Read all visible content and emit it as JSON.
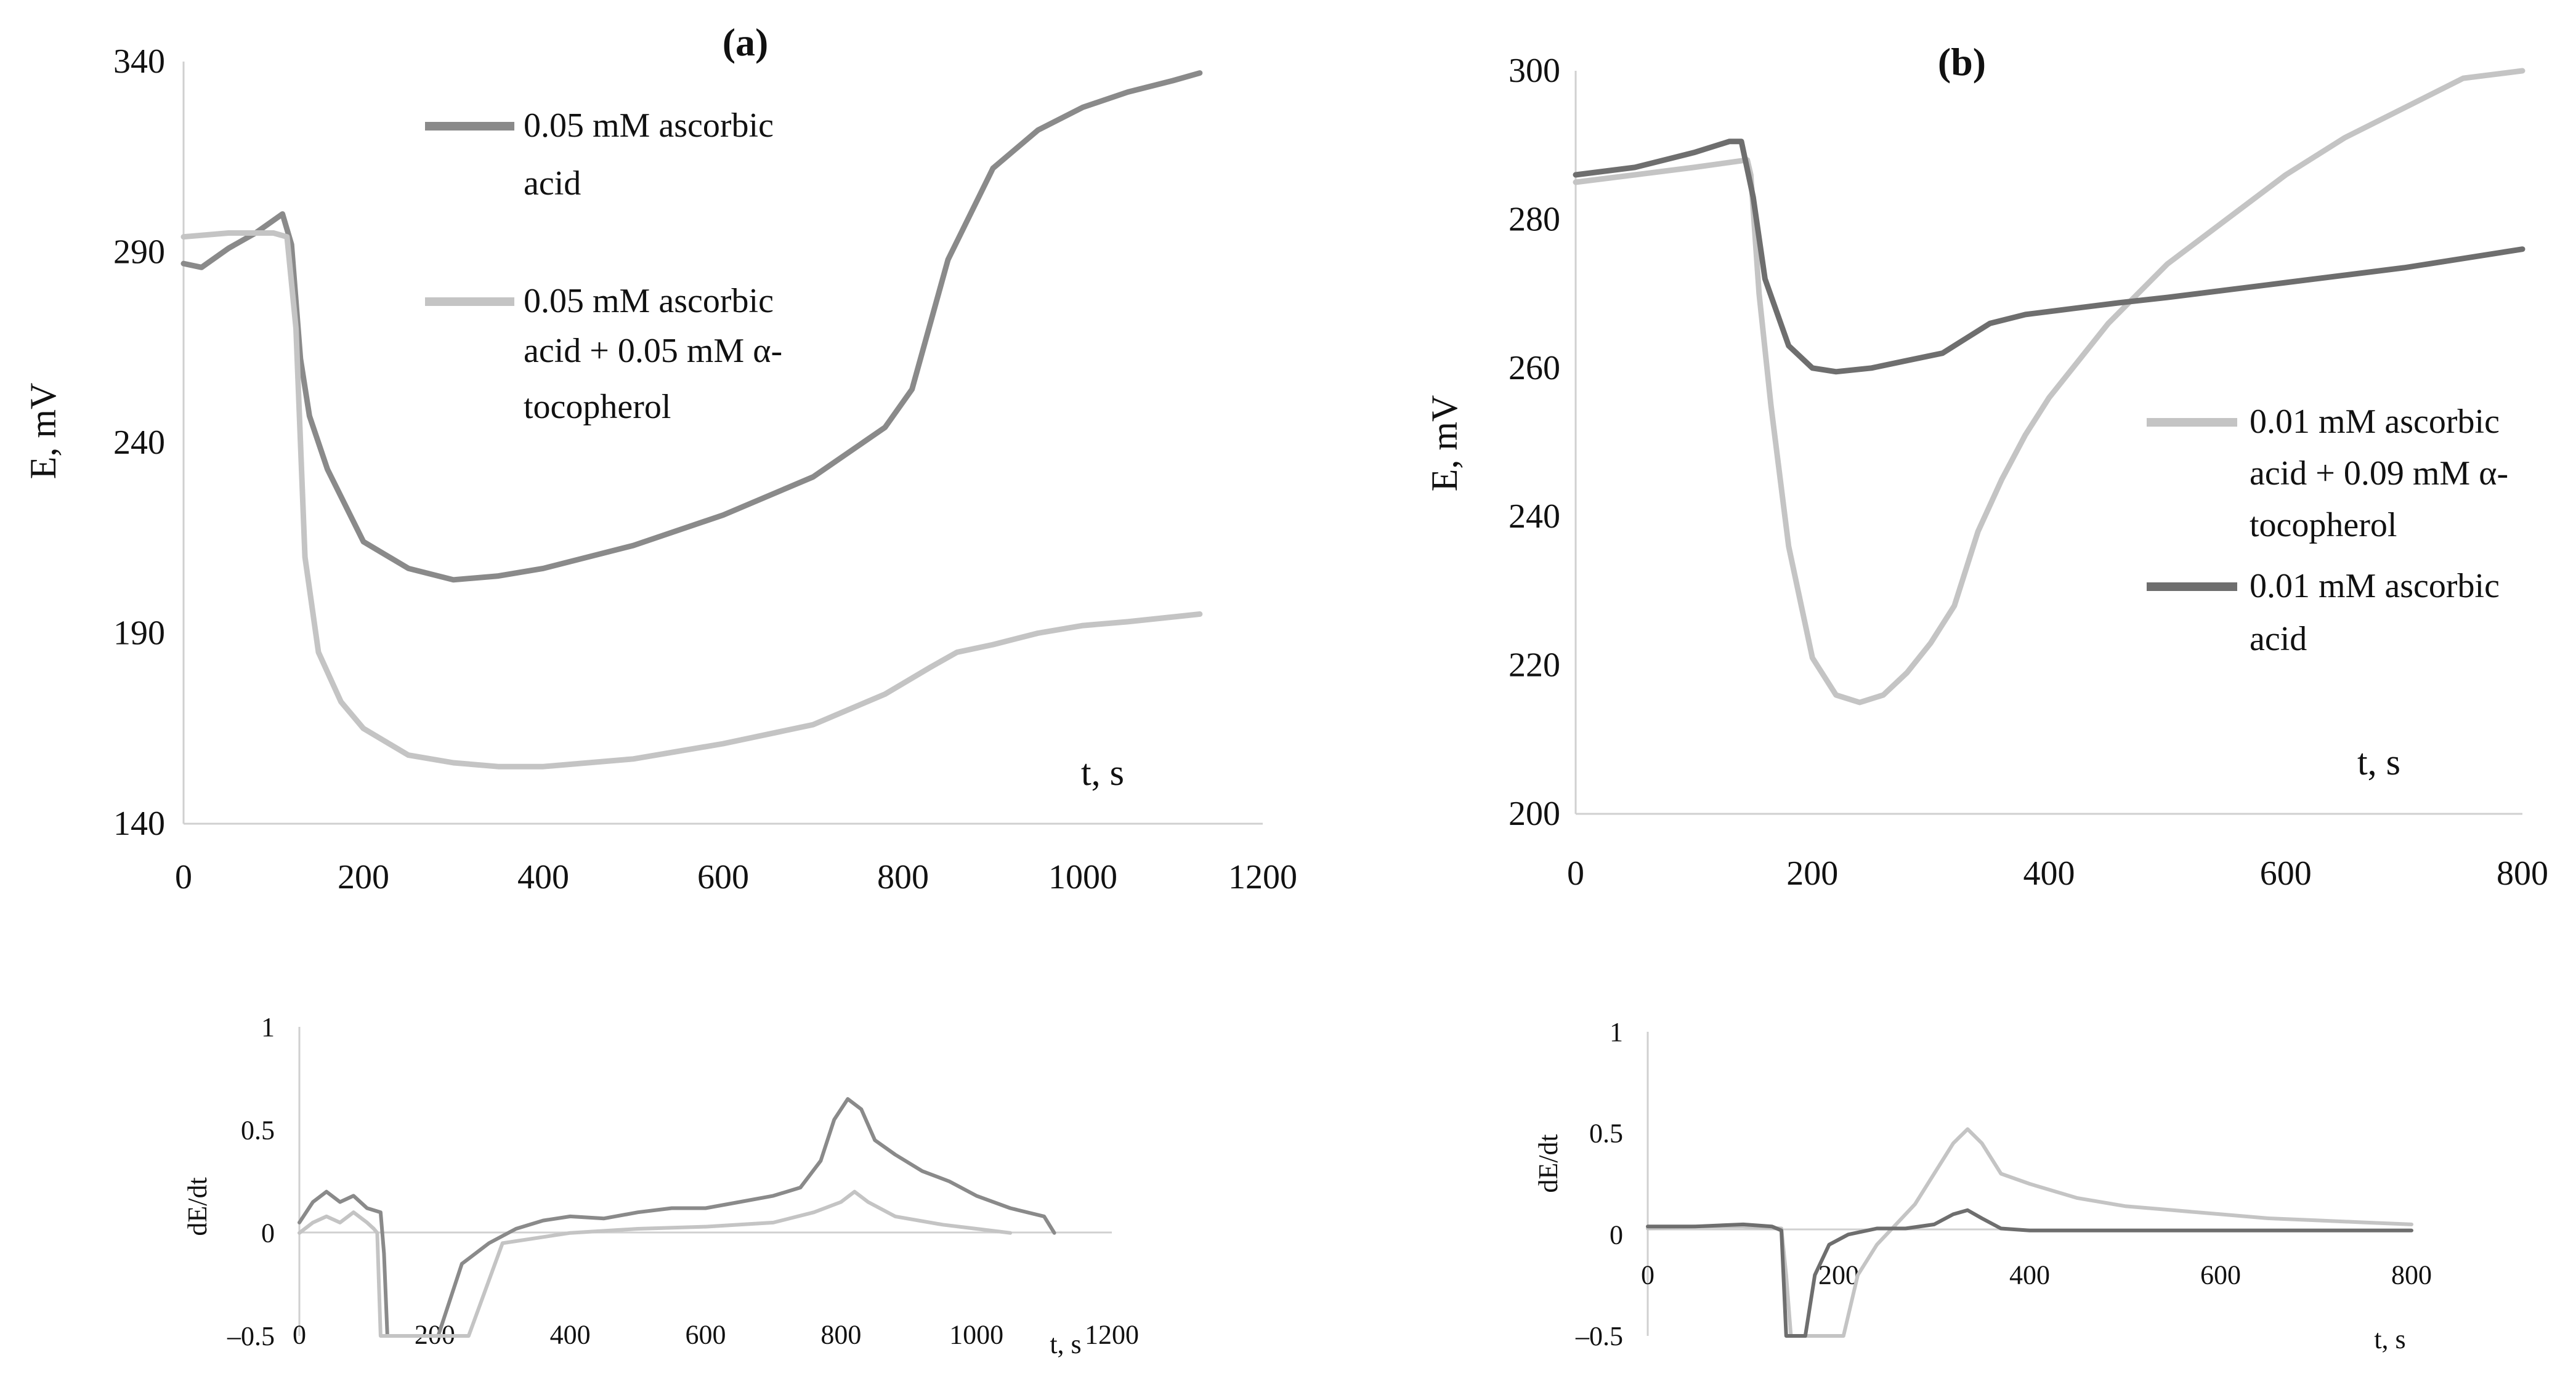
{
  "panels": {
    "a_label": "(a)",
    "b_label": "(b)"
  },
  "colors": {
    "dark": "#8a8a8a",
    "darker": "#6e6e6e",
    "light": "#c4c4c4"
  },
  "chart_data": [
    {
      "id": "a_main",
      "type": "line",
      "title": "(a)",
      "xlabel": "t, s",
      "ylabel": "E, mV",
      "xlim": [
        0,
        1200
      ],
      "ylim": [
        140,
        340
      ],
      "xticks": [
        "0",
        "200",
        "400",
        "600",
        "800",
        "1000",
        "1200"
      ],
      "yticks": [
        "140",
        "190",
        "240",
        "290",
        "340"
      ],
      "series": [
        {
          "name": "0.05 mM ascorbic acid",
          "name_lines": [
            "0.05 mM ascorbic",
            "acid"
          ],
          "color": "#8a8a8a",
          "x": [
            0,
            20,
            50,
            80,
            110,
            120,
            130,
            140,
            160,
            200,
            250,
            300,
            350,
            400,
            500,
            600,
            700,
            780,
            810,
            850,
            900,
            950,
            1000,
            1050,
            1100,
            1130
          ],
          "y": [
            287,
            286,
            291,
            295,
            300,
            292,
            262,
            247,
            233,
            214,
            207,
            204,
            205,
            207,
            213,
            221,
            231,
            244,
            254,
            288,
            312,
            322,
            328,
            332,
            335,
            337
          ]
        },
        {
          "name": "0.05 mM ascorbic acid + 0.05 mM α-tocopherol",
          "name_lines": [
            "0.05 mM ascorbic",
            "acid + 0.05 mM α-",
            "tocopherol"
          ],
          "color": "#c4c4c4",
          "x": [
            0,
            50,
            100,
            115,
            125,
            135,
            150,
            175,
            200,
            250,
            300,
            350,
            400,
            500,
            600,
            700,
            780,
            830,
            860,
            900,
            950,
            1000,
            1050,
            1130
          ],
          "y": [
            294,
            295,
            295,
            294,
            270,
            210,
            185,
            172,
            165,
            158,
            156,
            155,
            155,
            157,
            161,
            166,
            174,
            181,
            185,
            187,
            190,
            192,
            193,
            195
          ]
        }
      ]
    },
    {
      "id": "a_derivative",
      "type": "line",
      "xlabel": "t, s",
      "ylabel": "dE/dt",
      "xlim": [
        0,
        1200
      ],
      "ylim": [
        -0.5,
        1
      ],
      "xticks": [
        "0",
        "200",
        "400",
        "600",
        "800",
        "1000",
        "1200"
      ],
      "yticks": [
        "–0.5",
        "0",
        "0.5",
        "1"
      ],
      "series": [
        {
          "name": "0.05 mM ascorbic acid",
          "color": "#8a8a8a",
          "x": [
            0,
            20,
            40,
            60,
            80,
            100,
            120,
            125,
            130,
            205,
            240,
            280,
            320,
            360,
            400,
            450,
            500,
            550,
            600,
            650,
            700,
            740,
            770,
            790,
            810,
            830,
            850,
            880,
            920,
            960,
            1000,
            1050,
            1100,
            1115
          ],
          "y": [
            0.05,
            0.15,
            0.2,
            0.15,
            0.18,
            0.12,
            0.1,
            -0.1,
            -0.5,
            -0.5,
            -0.15,
            -0.05,
            0.02,
            0.06,
            0.08,
            0.07,
            0.1,
            0.12,
            0.12,
            0.15,
            0.18,
            0.22,
            0.35,
            0.55,
            0.65,
            0.6,
            0.45,
            0.38,
            0.3,
            0.25,
            0.18,
            0.12,
            0.08,
            0.0
          ]
        },
        {
          "name": "0.05 mM ascorbic acid + 0.05 mM α-tocopherol",
          "color": "#c4c4c4",
          "x": [
            0,
            20,
            40,
            60,
            80,
            100,
            110,
            115,
            120,
            250,
            300,
            400,
            500,
            600,
            700,
            760,
            800,
            820,
            840,
            880,
            950,
            1000,
            1050
          ],
          "y": [
            0.0,
            0.05,
            0.08,
            0.05,
            0.1,
            0.05,
            0.02,
            0.0,
            -0.5,
            -0.5,
            -0.05,
            0.0,
            0.02,
            0.03,
            0.05,
            0.1,
            0.15,
            0.2,
            0.15,
            0.08,
            0.04,
            0.02,
            0.0
          ]
        }
      ]
    },
    {
      "id": "b_main",
      "type": "line",
      "title": "(b)",
      "xlabel": "t, s",
      "ylabel": "E, mV",
      "xlim": [
        0,
        800
      ],
      "ylim": [
        200,
        300
      ],
      "xticks": [
        "0",
        "200",
        "400",
        "600",
        "800"
      ],
      "yticks": [
        "200",
        "220",
        "240",
        "260",
        "280",
        "300"
      ],
      "series": [
        {
          "name": "0.01 mM ascorbic acid + 0.09 mM α-tocopherol",
          "name_lines": [
            "0.01 mM ascorbic",
            "acid + 0.09 mM α-",
            "tocopherol"
          ],
          "color": "#c4c4c4",
          "x": [
            0,
            50,
            100,
            145,
            148,
            155,
            165,
            180,
            200,
            220,
            240,
            260,
            280,
            300,
            320,
            340,
            360,
            380,
            400,
            450,
            500,
            550,
            600,
            650,
            700,
            750,
            800
          ],
          "y": [
            285,
            286,
            287,
            288,
            286,
            270,
            255,
            236,
            221,
            216,
            215,
            216,
            219,
            223,
            228,
            238,
            245,
            251,
            256,
            266,
            274,
            280,
            286,
            291,
            295,
            299,
            302
          ]
        },
        {
          "name": "0.01 mM ascorbic acid",
          "name_lines": [
            "0.01 mM ascorbic",
            "acid"
          ],
          "color": "#6e6e6e",
          "x": [
            0,
            50,
            100,
            130,
            140,
            150,
            160,
            180,
            200,
            220,
            250,
            280,
            310,
            330,
            350,
            380,
            420,
            460,
            500,
            600,
            700,
            800
          ],
          "y": [
            286,
            287,
            289,
            290.5,
            290.5,
            283,
            272,
            263,
            260,
            259.5,
            260,
            261,
            262,
            264,
            266,
            267.2,
            268,
            268.8,
            269.5,
            271.5,
            273.5,
            276
          ]
        }
      ]
    },
    {
      "id": "b_derivative",
      "type": "line",
      "xlabel": "t, s",
      "ylabel": "dE/dt",
      "xlim": [
        0,
        800
      ],
      "ylim": [
        -0.5,
        1
      ],
      "xticks": [
        "0",
        "200",
        "400",
        "600",
        "800"
      ],
      "yticks": [
        "–0.5",
        "0",
        "0.5",
        "1"
      ],
      "series": [
        {
          "name": "0.01 mM ascorbic acid + 0.09 mM α-tocopherol",
          "color": "#c4c4c4",
          "x": [
            0,
            50,
            100,
            140,
            145,
            150,
            205,
            220,
            240,
            260,
            280,
            300,
            320,
            335,
            350,
            370,
            400,
            450,
            500,
            550,
            600,
            650,
            700,
            750,
            800
          ],
          "y": [
            0.03,
            0.04,
            0.04,
            0.03,
            -0.2,
            -0.5,
            -0.5,
            -0.2,
            -0.05,
            0.05,
            0.15,
            0.3,
            0.45,
            0.52,
            0.45,
            0.3,
            0.25,
            0.18,
            0.14,
            0.12,
            0.1,
            0.08,
            0.07,
            0.06,
            0.05
          ]
        },
        {
          "name": "0.01 mM ascorbic acid",
          "color": "#6e6e6e",
          "x": [
            0,
            50,
            100,
            130,
            140,
            145,
            165,
            175,
            190,
            210,
            240,
            270,
            300,
            320,
            335,
            350,
            370,
            400,
            500,
            600,
            700,
            800
          ],
          "y": [
            0.04,
            0.04,
            0.05,
            0.04,
            0.02,
            -0.5,
            -0.5,
            -0.2,
            -0.05,
            0.0,
            0.03,
            0.03,
            0.05,
            0.1,
            0.12,
            0.08,
            0.03,
            0.02,
            0.02,
            0.02,
            0.02,
            0.02
          ]
        }
      ]
    }
  ]
}
